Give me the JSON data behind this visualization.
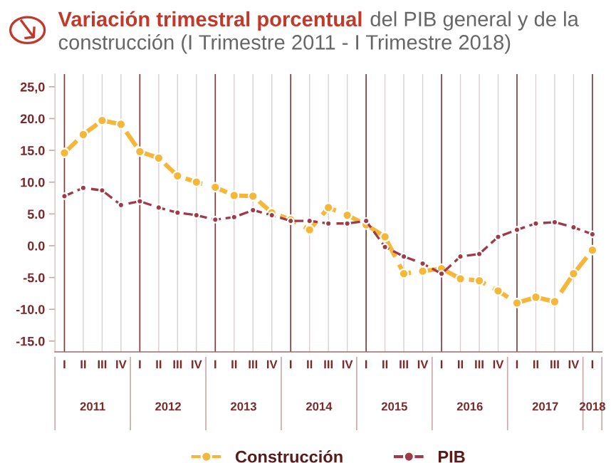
{
  "chart_data": {
    "type": "line",
    "title": "Variación trimestral porcentual",
    "subtitle": "del PIB general y de la construcción (I Trimestre 2011 - I Trimestre 2018)",
    "categories": [
      "I",
      "II",
      "III",
      "IV",
      "I",
      "II",
      "III",
      "IV",
      "I",
      "II",
      "III",
      "IV",
      "I",
      "II",
      "III",
      "IV",
      "I",
      "II",
      "III",
      "IV",
      "I",
      "II",
      "III",
      "IV",
      "I",
      "II",
      "III",
      "IV",
      "I"
    ],
    "annotations": [
      "2011",
      "2012",
      "2013",
      "2014",
      "2015",
      "2016",
      "2017",
      "2018"
    ],
    "series": [
      {
        "name": "Construcción",
        "color": "#f5b73a",
        "values": [
          14.6,
          17.5,
          19.7,
          19.1,
          14.8,
          13.8,
          11.0,
          10.0,
          9.2,
          7.9,
          7.8,
          5.2,
          4.1,
          2.5,
          6.0,
          4.8,
          3.3,
          1.4,
          -4.4,
          -4.0,
          -3.6,
          -5.2,
          -5.5,
          -7.1,
          -9.0,
          -8.1,
          -8.8,
          -4.4,
          -0.7
        ]
      },
      {
        "name": "PIB",
        "color": "#9e3a4a",
        "values": [
          7.8,
          9.1,
          8.7,
          6.4,
          7.0,
          6.0,
          5.2,
          4.8,
          4.1,
          4.5,
          5.6,
          4.8,
          3.9,
          3.9,
          3.5,
          3.5,
          3.9,
          -0.2,
          -1.7,
          -2.8,
          -4.4,
          -1.7,
          -1.3,
          1.4,
          2.5,
          3.5,
          3.7,
          2.9,
          1.8
        ]
      }
    ],
    "ylim": [
      -16.7,
      27
    ],
    "yticks": [
      {
        "value": 25,
        "label": "25,0"
      },
      {
        "value": 20,
        "label": "20.0"
      },
      {
        "value": 15,
        "label": "15.0"
      },
      {
        "value": 10,
        "label": "10.0"
      },
      {
        "value": 5,
        "label": "5.0"
      },
      {
        "value": 0,
        "label": "0.0"
      },
      {
        "value": -5,
        "label": "-5.0"
      },
      {
        "value": -10,
        "label": "-10.0"
      },
      {
        "value": -15,
        "label": "-15.0"
      }
    ],
    "grid": "x",
    "legend": "bottom",
    "marker": "circle",
    "line_style": "dashed"
  }
}
